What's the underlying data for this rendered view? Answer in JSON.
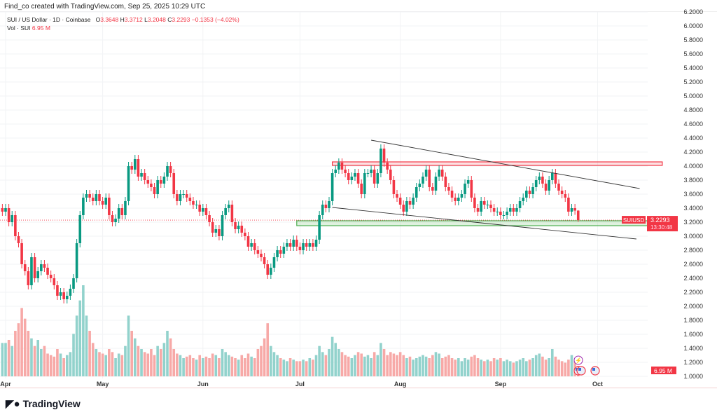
{
  "header": {
    "text": "Find_co created with TradingView.com, Sep 25, 2025 10:29 UTC"
  },
  "legend": {
    "symbol": "SUI / US Dollar · 1D · Coinbase",
    "o_label": "O",
    "o": "3.3648",
    "h_label": "H",
    "h": "3.3712",
    "l_label": "L",
    "l": "3.2048",
    "c_label": "C",
    "c": "3.2293",
    "change": "−0.1353 (−4.02%)",
    "vol_label": "Vol · SUI",
    "vol": "6.95 M"
  },
  "price_tag": {
    "symbol": "SUIUSD",
    "price": "3.2293",
    "countdown": "13:30:48"
  },
  "vol_tag": "6.95 M",
  "logo": "TradingView",
  "colors": {
    "up": "#089981",
    "down": "#f23645",
    "vol_up": "#92d2cc",
    "vol_down": "#f7a9a7",
    "support": "#4caf50",
    "resistance": "#f23645"
  },
  "chart_data": {
    "type": "candlestick",
    "start_date": "2025-03-31",
    "y_ticks": [
      "6.2000",
      "6.0000",
      "5.8000",
      "5.6000",
      "5.4000",
      "5.2000",
      "5.0000",
      "4.8000",
      "4.6000",
      "4.4000",
      "4.2000",
      "4.0000",
      "3.8000",
      "3.6000",
      "3.4000",
      "3.2000",
      "3.0000",
      "2.8000",
      "2.6000",
      "2.4000",
      "2.2000",
      "2.0000",
      "1.8000",
      "1.6000",
      "1.4000",
      "1.2000",
      "1.0000"
    ],
    "ylim": [
      1.0,
      6.2
    ],
    "x_ticks": [
      {
        "label": "Apr",
        "date": "2025-04-01"
      },
      {
        "label": "May",
        "date": "2025-05-01"
      },
      {
        "label": "Jun",
        "date": "2025-06-01"
      },
      {
        "label": "Jul",
        "date": "2025-07-01"
      },
      {
        "label": "Aug",
        "date": "2025-08-01"
      },
      {
        "label": "Sep",
        "date": "2025-09-01"
      },
      {
        "label": "Oct",
        "date": "2025-10-01"
      }
    ],
    "last_ohlc": [
      3.3648,
      3.3712,
      3.2048,
      3.2293
    ],
    "closes": [
      3.35,
      3.4,
      3.2,
      3.3,
      3.0,
      2.9,
      2.6,
      2.5,
      2.3,
      2.7,
      2.4,
      2.5,
      2.6,
      2.55,
      2.45,
      2.4,
      2.3,
      2.15,
      2.2,
      2.1,
      2.15,
      2.25,
      2.4,
      2.9,
      3.3,
      3.55,
      3.6,
      3.55,
      3.5,
      3.6,
      3.5,
      3.45,
      3.55,
      3.3,
      3.2,
      3.25,
      3.4,
      3.3,
      3.5,
      4.0,
      3.95,
      4.1,
      3.85,
      3.9,
      3.8,
      3.75,
      3.7,
      3.6,
      3.8,
      3.75,
      3.85,
      4.0,
      3.9,
      3.6,
      3.5,
      3.6,
      3.6,
      3.55,
      3.5,
      3.45,
      3.45,
      3.35,
      3.4,
      3.3,
      3.2,
      3.05,
      3.1,
      3.0,
      3.3,
      3.4,
      3.45,
      3.2,
      3.1,
      3.15,
      3.05,
      3.0,
      2.85,
      2.9,
      2.8,
      2.75,
      2.7,
      2.6,
      2.45,
      2.55,
      2.7,
      2.8,
      2.75,
      2.85,
      2.9,
      2.85,
      2.95,
      2.85,
      2.8,
      2.9,
      2.85,
      2.9,
      2.85,
      2.95,
      3.3,
      3.45,
      3.4,
      3.5,
      3.9,
      3.95,
      4.05,
      3.95,
      3.9,
      3.8,
      3.85,
      3.9,
      3.75,
      3.6,
      3.9,
      3.9,
      3.95,
      3.75,
      3.9,
      4.25,
      4.05,
      3.95,
      3.8,
      3.6,
      3.55,
      3.45,
      3.35,
      3.5,
      3.45,
      3.55,
      3.7,
      3.75,
      3.85,
      3.95,
      3.7,
      3.65,
      3.85,
      3.95,
      3.85,
      3.7,
      3.65,
      3.55,
      3.5,
      3.55,
      3.6,
      3.75,
      3.8,
      3.55,
      3.4,
      3.35,
      3.5,
      3.45,
      3.45,
      3.4,
      3.35,
      3.35,
      3.3,
      3.3,
      3.35,
      3.4,
      3.35,
      3.4,
      3.5,
      3.55,
      3.65,
      3.6,
      3.7,
      3.8,
      3.85,
      3.75,
      3.65,
      3.8,
      3.9,
      3.75,
      3.65,
      3.6,
      3.55,
      3.35,
      3.4,
      3.3648,
      3.2293
    ],
    "volumes_m": [
      22,
      22,
      24,
      20,
      30,
      35,
      45,
      38,
      30,
      25,
      20,
      24,
      18,
      20,
      15,
      14,
      13,
      18,
      15,
      12,
      14,
      16,
      28,
      40,
      50,
      60,
      40,
      30,
      22,
      18,
      16,
      15,
      14,
      18,
      16,
      12,
      15,
      14,
      20,
      40,
      30,
      25,
      20,
      18,
      16,
      15,
      18,
      14,
      20,
      18,
      22,
      30,
      25,
      18,
      15,
      14,
      12,
      13,
      14,
      12,
      11,
      14,
      12,
      13,
      12,
      15,
      14,
      12,
      18,
      16,
      14,
      13,
      12,
      11,
      14,
      12,
      15,
      13,
      12,
      18,
      20,
      25,
      35,
      20,
      16,
      14,
      12,
      11,
      10,
      12,
      11,
      10,
      10,
      11,
      10,
      12,
      11,
      14,
      20,
      16,
      14,
      18,
      26,
      22,
      18,
      16,
      14,
      13,
      12,
      14,
      16,
      15,
      13,
      14,
      12,
      16,
      14,
      22,
      18,
      14,
      16,
      15,
      14,
      16,
      14,
      12,
      13,
      11,
      12,
      13,
      14,
      13,
      12,
      14,
      16,
      15,
      12,
      13,
      14,
      12,
      11,
      12,
      10,
      12,
      11,
      13,
      14,
      12,
      11,
      10,
      11,
      10,
      12,
      11,
      12,
      10,
      11,
      10,
      9,
      10,
      11,
      12,
      10,
      11,
      12,
      14,
      15,
      13,
      11,
      12,
      18,
      13,
      11,
      10,
      9,
      11,
      14,
      10,
      6.95
    ],
    "trendlines": [
      {
        "from": [
          "2025-07-23",
          4.37
        ],
        "to": [
          "2025-10-14",
          3.68
        ]
      },
      {
        "from": [
          "2025-07-11",
          3.41
        ],
        "to": [
          "2025-10-13",
          2.96
        ]
      }
    ],
    "zones": [
      {
        "type": "resistance",
        "from": "2025-07-11",
        "to": "2025-10-21",
        "top": 4.06,
        "bottom": 4.01
      },
      {
        "type": "support",
        "from": "2025-06-30",
        "to": "2025-10-24",
        "top": 3.22,
        "bottom": 3.15
      }
    ]
  }
}
